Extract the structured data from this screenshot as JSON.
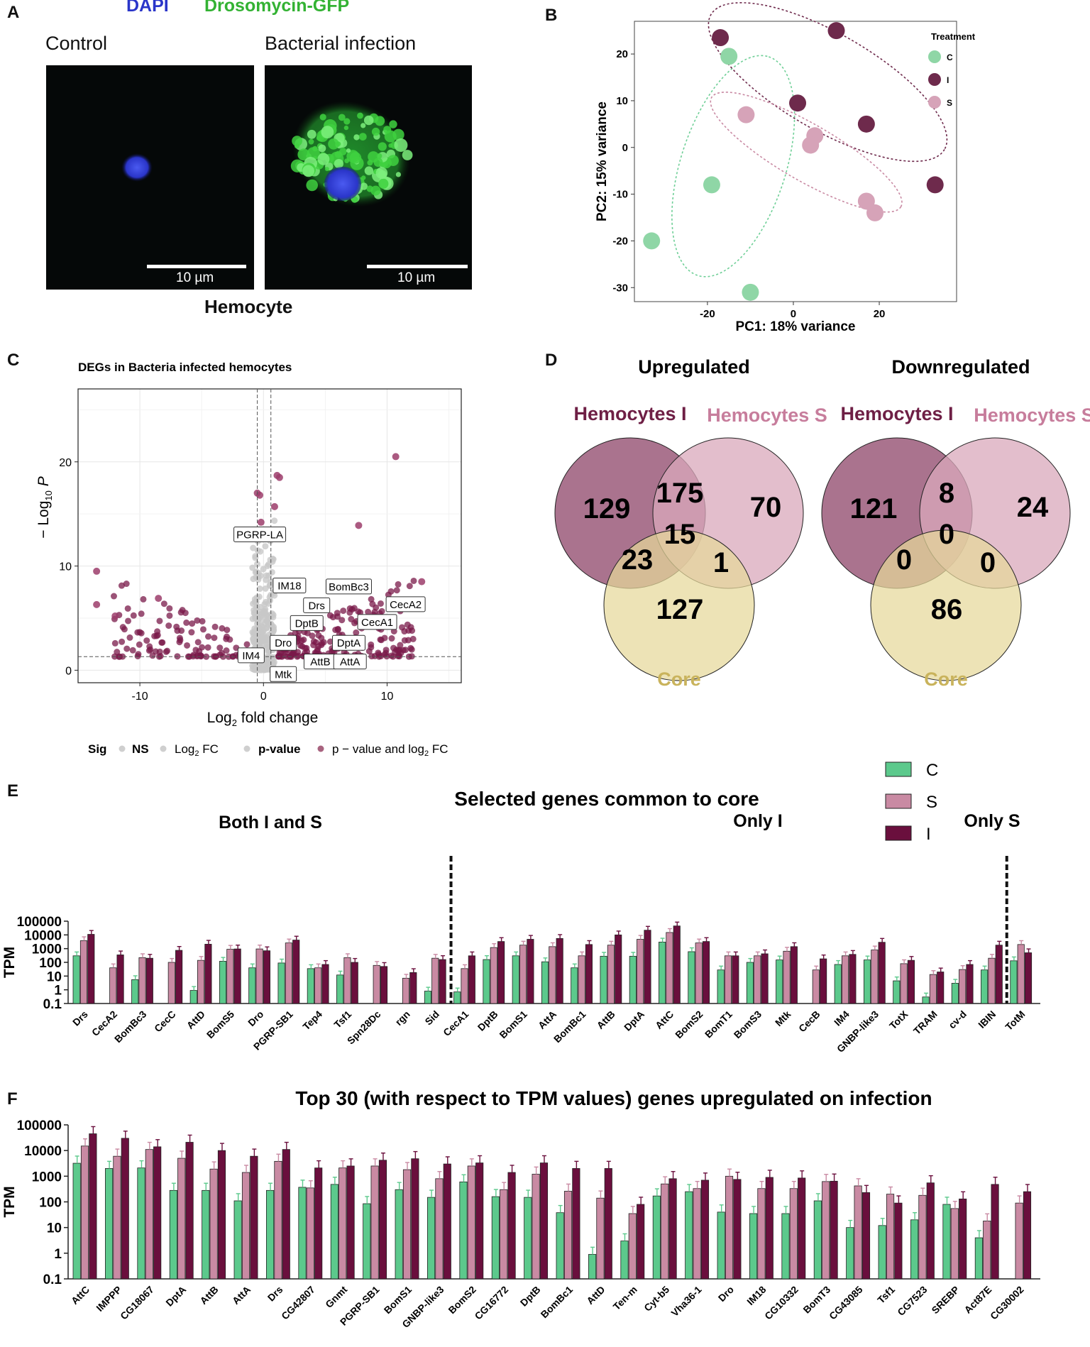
{
  "panelA": {
    "label": "A",
    "legend_dapi": "DAPI",
    "legend_gfp": "Drosomycin-GFP",
    "col_control": "Control",
    "col_infection": "Bacterial infection",
    "scale_left": "10 µm",
    "scale_right": "10 µm",
    "caption": "Hemocyte",
    "colors": {
      "dapi": "#2a35c9",
      "gfp": "#33b233"
    }
  },
  "panelB": {
    "label": "B",
    "chart_data": {
      "type": "scatter",
      "xlabel": "PC1: 18% variance",
      "ylabel": "PC2: 15% variance",
      "xlim": [
        -37,
        38
      ],
      "ylim": [
        -33,
        27
      ],
      "xticks": [
        "-20",
        "0",
        "20"
      ],
      "yticks": [
        "20",
        "10",
        "0",
        "-10",
        "-20",
        "-30"
      ],
      "legend_title": "Treatment",
      "series": [
        {
          "name": "C",
          "color": "#8fd6a6",
          "points": [
            [
              -33,
              -20
            ],
            [
              -19,
              -8
            ],
            [
              -15,
              19.5
            ],
            [
              -10,
              -31
            ]
          ]
        },
        {
          "name": "I",
          "color": "#6e2a4c",
          "points": [
            [
              -17,
              23.5
            ],
            [
              10,
              25
            ],
            [
              1,
              9.5
            ],
            [
              17,
              5
            ],
            [
              33,
              -8
            ]
          ]
        },
        {
          "name": "S",
          "color": "#d6a3b8",
          "points": [
            [
              -11,
              7
            ],
            [
              5,
              2.5
            ],
            [
              4,
              0.5
            ],
            [
              17,
              -11.5
            ],
            [
              19,
              -14
            ]
          ]
        }
      ]
    }
  },
  "panelC": {
    "label": "C",
    "chart_data": {
      "type": "scatter",
      "title": "DEGs in Bacteria infected hemocytes",
      "xlabel_main": "Log",
      "xlabel_sub": "2",
      "xlabel_tail": " fold change",
      "ylabel_main": "− Log",
      "ylabel_sub": "10",
      "ylabel_tail": " P",
      "xlim": [
        -15,
        16
      ],
      "ylim": [
        -1.2,
        27
      ],
      "xticks": [
        "-10",
        "0",
        "10"
      ],
      "yticks": [
        "0",
        "10",
        "20"
      ],
      "genes": [
        {
          "name": "PGRP-LA",
          "x": -0.3,
          "y": 13
        },
        {
          "name": "IM18",
          "x": 2.1,
          "y": 8.1
        },
        {
          "name": "BomBc3",
          "x": 6.9,
          "y": 8
        },
        {
          "name": "Drs",
          "x": 4.3,
          "y": 6.2
        },
        {
          "name": "CecA2",
          "x": 11.5,
          "y": 6.3
        },
        {
          "name": "DptB",
          "x": 3.5,
          "y": 4.5
        },
        {
          "name": "CecA1",
          "x": 9.2,
          "y": 4.6
        },
        {
          "name": "Dro",
          "x": 1.6,
          "y": 2.6
        },
        {
          "name": "DptA",
          "x": 6.9,
          "y": 2.6
        },
        {
          "name": "IM4",
          "x": -1.0,
          "y": 1.4
        },
        {
          "name": "AttB",
          "x": 4.6,
          "y": 0.8
        },
        {
          "name": "AttA",
          "x": 7.0,
          "y": 0.8
        },
        {
          "name": "Mtk",
          "x": 1.6,
          "y": -0.4
        }
      ],
      "legend": {
        "title": "Sig",
        "items": [
          "NS",
          "Log",
          "p-value",
          "p − value and log"
        ],
        "log_sub": "2",
        "fc": " FC"
      }
    }
  },
  "panelD": {
    "label": "D",
    "up": {
      "title": "Upregulated",
      "set_i": "Hemocytes I",
      "set_s": "Hemocytes S",
      "core": "Core",
      "i_only": "129",
      "is": "175",
      "s_only": "70",
      "all": "15",
      "i_core": "23",
      "s_core": "1",
      "core_only": "127"
    },
    "down": {
      "title": "Downregulated",
      "set_i": "Hemocytes I",
      "set_s": "Hemocytes S",
      "core": "Core",
      "i_only": "121",
      "is": "8",
      "s_only": "24",
      "all": "0",
      "i_core": "0",
      "s_core": "0",
      "core_only": "86"
    },
    "colors": {
      "i": "#9b5b7a",
      "s": "#d9a8bb",
      "core": "#e6d89a",
      "label_i": "#6e1f45",
      "label_s": "#c77d9c",
      "label_core": "#c9b35c"
    }
  },
  "panelE": {
    "label": "E",
    "chart_data": {
      "type": "bar",
      "title": "Selected genes common to core",
      "ylabel": "TPM",
      "yscale": "log",
      "yticks": [
        "100000",
        "10000",
        "1000",
        "100",
        "10",
        "1",
        "0.1"
      ],
      "group_labels": [
        "Both I and S",
        "Only I",
        "Only  S"
      ],
      "legend": [
        "C",
        "S",
        "I"
      ],
      "series_colors": {
        "C": "#5cc98c",
        "S": "#c98aa3",
        "I": "#6a0f3d"
      },
      "categories": [
        "Drs",
        "CecA2",
        "BomBc3",
        "CecC",
        "AttD",
        "BomS5",
        "Dro",
        "PGRP-SB1",
        "Tep4",
        "Tsf1",
        "Spn28Dc",
        "rgn",
        "Sid",
        "CecA1",
        "DptB",
        "BomS1",
        "AttA",
        "BomBc1",
        "AttB",
        "DptA",
        "AttC",
        "BomS2",
        "BomT1",
        "BomS3",
        "Mtk",
        "CecB",
        "IM4",
        "GNBP-like3",
        "TotX",
        "TRAM",
        "cv-d",
        "IBIN",
        "TotM"
      ],
      "C": [
        300,
        0,
        5.5,
        0,
        0.9,
        120,
        40,
        90,
        35,
        12,
        0,
        0,
        0.8,
        0.7,
        160,
        300,
        110,
        40,
        280,
        280,
        3000,
        600,
        28,
        100,
        150,
        0,
        70,
        150,
        4.5,
        0.3,
        3,
        28,
        130
      ],
      "S": [
        3800,
        40,
        220,
        100,
        140,
        900,
        950,
        2600,
        40,
        220,
        60,
        7,
        200,
        35,
        1200,
        1800,
        1400,
        300,
        1800,
        4800,
        15000,
        2600,
        300,
        300,
        650,
        28,
        300,
        800,
        80,
        13,
        30,
        200,
        2000
      ],
      "I": [
        11000,
        350,
        200,
        750,
        2100,
        950,
        700,
        4200,
        70,
        100,
        50,
        18,
        160,
        300,
        3300,
        4800,
        5500,
        2000,
        10000,
        22000,
        45000,
        3300,
        300,
        420,
        1400,
        180,
        380,
        2900,
        140,
        20,
        70,
        1800,
        500
      ]
    }
  },
  "panelF": {
    "label": "F",
    "chart_data": {
      "type": "bar",
      "title": "Top 30 (with respect to TPM values) genes upregulated on infection",
      "ylabel": "TPM",
      "yscale": "log",
      "yticks": [
        "100000",
        "10000",
        "1000",
        "100",
        "10",
        "1",
        "0.1"
      ],
      "categories": [
        "AttC",
        "IMPPP",
        "CG18067",
        "DptA",
        "AttB",
        "AttA",
        "Drs",
        "CG42807",
        "Gnmt",
        "PGRP-SB1",
        "BomS1",
        "GNBP-like3",
        "BomS2",
        "CG16772",
        "DptB",
        "BomBc1",
        "AttD",
        "Ten-m",
        "Cyt-b5",
        "Vha36-1",
        "Dro",
        "IM18",
        "CG10332",
        "BomT3",
        "CG43085",
        "Tsf1",
        "CG7523",
        "SREBP",
        "Act87E",
        "CG30002"
      ],
      "C": [
        3200,
        2000,
        2100,
        280,
        280,
        110,
        280,
        370,
        480,
        85,
        300,
        150,
        600,
        160,
        150,
        38,
        0.9,
        3,
        170,
        250,
        40,
        35,
        35,
        110,
        10,
        12,
        20,
        80,
        4,
        0
      ],
      "S": [
        15000,
        6000,
        11000,
        5000,
        1900,
        1400,
        3800,
        350,
        2100,
        2500,
        1800,
        800,
        2500,
        300,
        1200,
        260,
        140,
        35,
        500,
        330,
        1000,
        330,
        330,
        620,
        420,
        200,
        180,
        55,
        18,
        90
      ],
      "I": [
        45000,
        30000,
        14000,
        21000,
        10000,
        6000,
        11000,
        2100,
        2500,
        4200,
        4800,
        3000,
        3300,
        1400,
        3300,
        2000,
        2000,
        80,
        800,
        700,
        750,
        900,
        850,
        640,
        230,
        90,
        550,
        130,
        480,
        250
      ]
    }
  }
}
